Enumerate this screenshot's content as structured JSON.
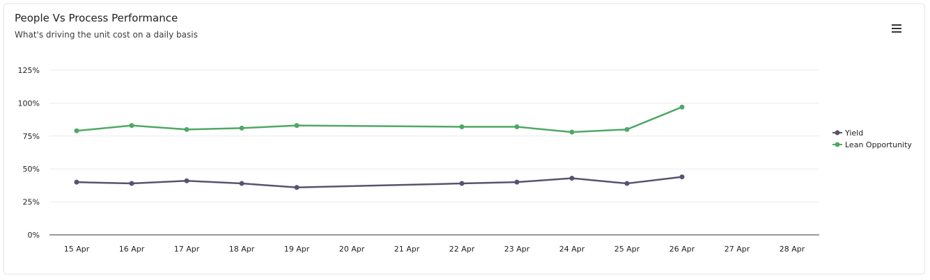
{
  "chart_data": {
    "type": "line",
    "title": "People Vs Process Performance",
    "subtitle": "What's driving the unit cost on a daily basis",
    "categories": [
      "15 Apr",
      "16 Apr",
      "17 Apr",
      "18 Apr",
      "19 Apr",
      "20 Apr",
      "21 Apr",
      "22 Apr",
      "23 Apr",
      "24 Apr",
      "25 Apr",
      "26 Apr",
      "27 Apr",
      "28 Apr"
    ],
    "y_ticks": [
      0,
      25,
      50,
      75,
      100,
      125
    ],
    "y_tick_labels": [
      "0%",
      "25%",
      "50%",
      "75%",
      "100%",
      "125%"
    ],
    "ylim": [
      0,
      125
    ],
    "grid": true,
    "legend_position": "right",
    "series": [
      {
        "name": "Yield",
        "color": "#5a5170",
        "values": [
          40,
          39,
          41,
          39,
          36,
          null,
          null,
          39,
          40,
          43,
          39,
          44,
          null,
          null
        ]
      },
      {
        "name": "Lean Opportunity",
        "color": "#4ea865",
        "values": [
          79,
          83,
          80,
          81,
          83,
          null,
          null,
          82,
          82,
          78,
          80,
          97,
          null,
          null
        ]
      }
    ]
  },
  "menu": {
    "icon": "hamburger-menu-icon"
  }
}
